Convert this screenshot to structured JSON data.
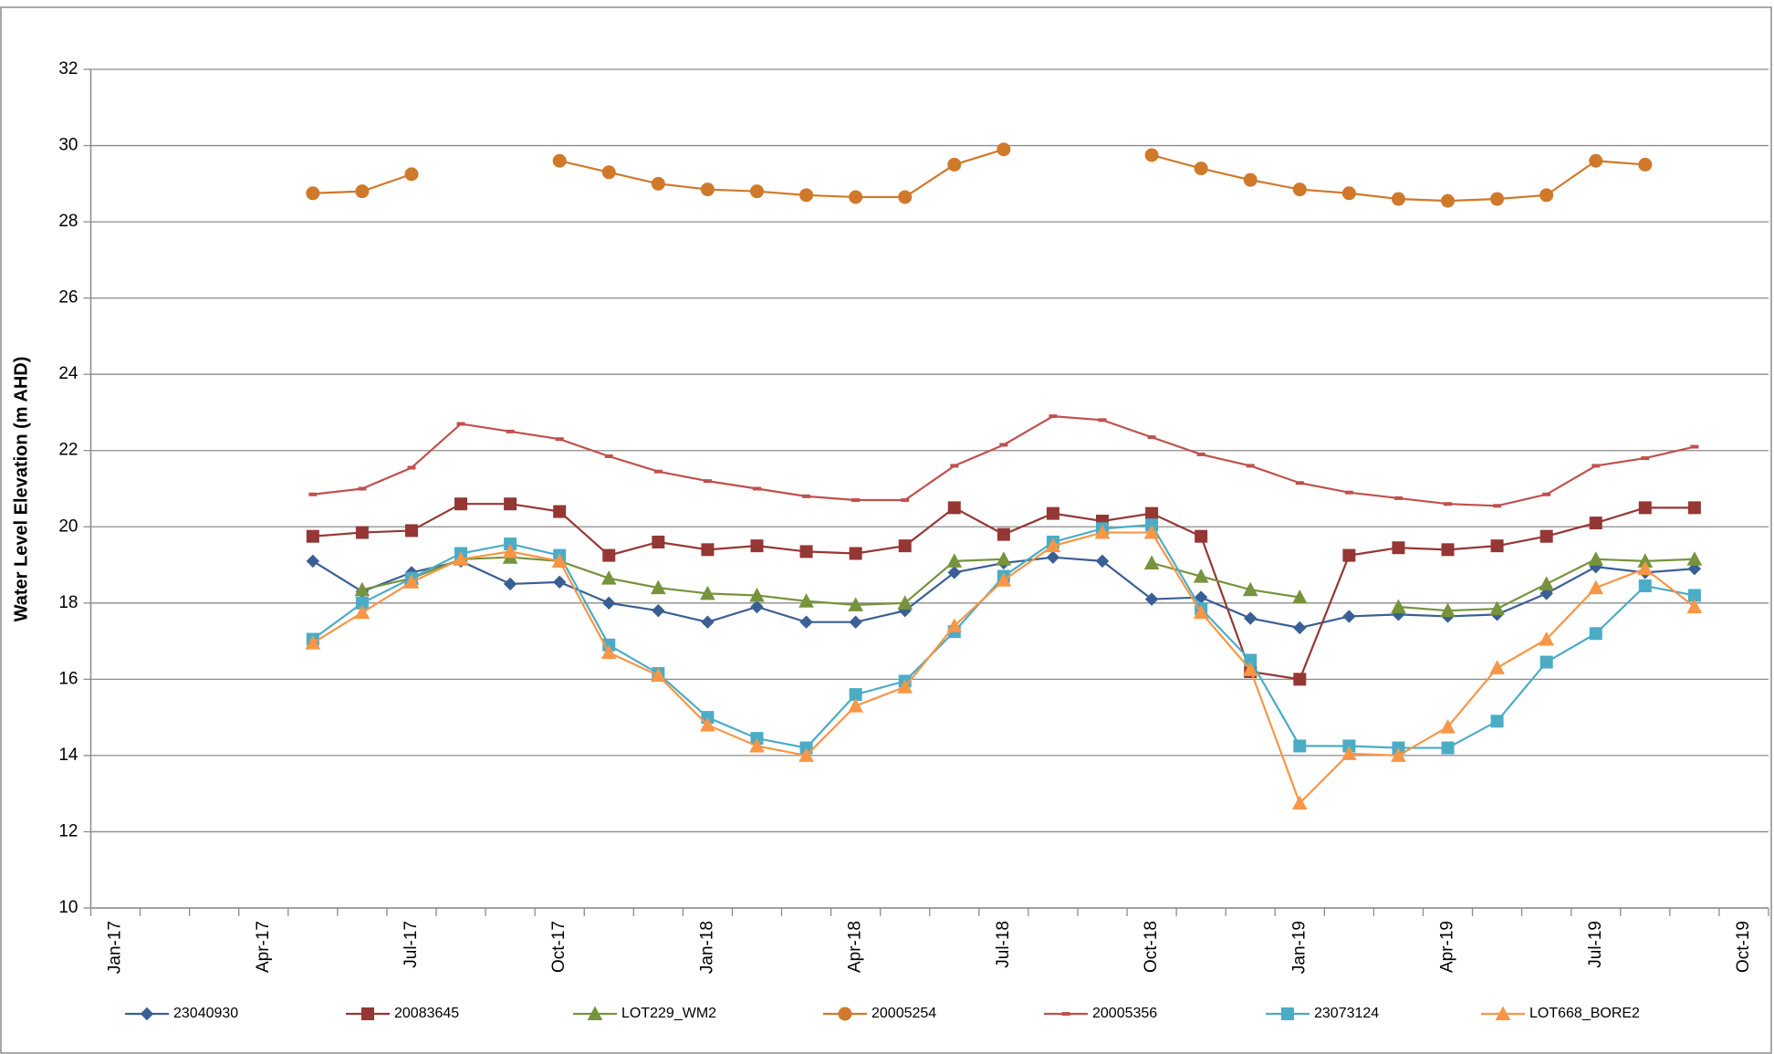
{
  "chart_data": {
    "type": "line",
    "y_label": "Water Level Elevation (m AHD)",
    "categories": [
      "Jan-17",
      null,
      null,
      "Apr-17",
      null,
      null,
      "Jul-17",
      null,
      null,
      "Oct-17",
      null,
      null,
      "Jan-18",
      null,
      null,
      "Apr-18",
      null,
      null,
      "Jul-18",
      null,
      null,
      "Oct-18",
      null,
      null,
      "Jan-19",
      null,
      null,
      "Apr-19",
      null,
      null,
      "Jul-19",
      null,
      null,
      "Oct-19"
    ],
    "ylim": [
      10,
      32
    ],
    "yticks": [
      10,
      12,
      14,
      16,
      18,
      20,
      22,
      24,
      26,
      28,
      30,
      32
    ],
    "grid": true,
    "legend": "bottom",
    "series": [
      {
        "name": "23040930",
        "color": "#3a5f94",
        "marker": "diamond",
        "values": [
          null,
          null,
          null,
          null,
          19.1,
          18.3,
          18.8,
          19.1,
          18.5,
          18.55,
          18.0,
          17.8,
          17.5,
          17.9,
          17.5,
          17.5,
          17.8,
          18.8,
          19.05,
          19.2,
          19.1,
          18.1,
          18.15,
          17.6,
          17.35,
          17.65,
          17.7,
          17.65,
          17.7,
          18.25,
          18.95,
          18.8,
          18.9,
          null
        ]
      },
      {
        "name": "20083645",
        "color": "#953735",
        "marker": "square",
        "values": [
          null,
          null,
          null,
          null,
          19.75,
          19.85,
          19.9,
          20.6,
          20.6,
          20.4,
          19.25,
          19.6,
          19.4,
          19.5,
          19.35,
          19.3,
          19.5,
          20.5,
          19.8,
          20.35,
          20.15,
          20.35,
          19.75,
          16.2,
          16.0,
          19.25,
          19.45,
          19.4,
          19.5,
          19.75,
          20.1,
          20.5,
          20.5,
          null
        ]
      },
      {
        "name": "LOT229_WM2",
        "color": "#77933c",
        "marker": "triangle",
        "values": [
          null,
          null,
          null,
          null,
          null,
          18.35,
          18.65,
          19.15,
          19.2,
          19.1,
          18.65,
          18.4,
          18.25,
          18.2,
          18.05,
          17.95,
          18.0,
          19.1,
          19.15,
          null,
          null,
          19.05,
          18.7,
          18.35,
          18.15,
          null,
          17.9,
          17.8,
          17.85,
          18.5,
          19.15,
          19.1,
          19.15,
          null
        ]
      },
      {
        "name": "20005254",
        "color": "#d0792b",
        "marker": "circle",
        "values": [
          null,
          null,
          null,
          null,
          28.75,
          28.8,
          29.25,
          null,
          null,
          29.6,
          29.3,
          29.0,
          28.85,
          28.8,
          28.7,
          28.65,
          28.65,
          29.5,
          29.9,
          null,
          null,
          29.75,
          29.4,
          29.1,
          28.85,
          28.75,
          28.6,
          28.55,
          28.6,
          28.7,
          29.6,
          29.5,
          null,
          null
        ]
      },
      {
        "name": "20005356",
        "color": "#c0504d",
        "marker": "dash",
        "values": [
          null,
          null,
          null,
          null,
          20.85,
          21.0,
          21.55,
          22.7,
          22.5,
          22.3,
          21.85,
          21.45,
          21.2,
          21.0,
          20.8,
          20.7,
          20.7,
          21.6,
          22.15,
          22.9,
          22.8,
          22.35,
          21.9,
          21.6,
          21.15,
          20.9,
          20.75,
          20.6,
          20.55,
          20.85,
          21.6,
          21.8,
          22.1,
          null
        ]
      },
      {
        "name": "23073124",
        "color": "#4bacc6",
        "marker": "square",
        "values": [
          null,
          null,
          null,
          null,
          17.05,
          18.0,
          18.65,
          19.3,
          19.55,
          19.25,
          16.9,
          16.15,
          15.0,
          14.45,
          14.2,
          15.6,
          15.95,
          17.25,
          18.7,
          19.6,
          19.95,
          20.05,
          17.85,
          16.5,
          14.25,
          14.25,
          14.2,
          14.2,
          14.9,
          16.45,
          17.2,
          18.45,
          18.2,
          null
        ]
      },
      {
        "name": "LOT668_BORE2",
        "color": "#f79646",
        "marker": "triangle",
        "values": [
          null,
          null,
          null,
          null,
          16.95,
          17.75,
          18.55,
          19.15,
          19.35,
          19.1,
          16.7,
          16.1,
          14.8,
          14.25,
          14.0,
          15.3,
          15.8,
          17.4,
          18.6,
          19.5,
          19.85,
          19.85,
          17.75,
          16.25,
          12.75,
          14.05,
          14.0,
          14.75,
          16.3,
          17.05,
          18.4,
          18.9,
          17.9,
          null
        ]
      }
    ]
  }
}
